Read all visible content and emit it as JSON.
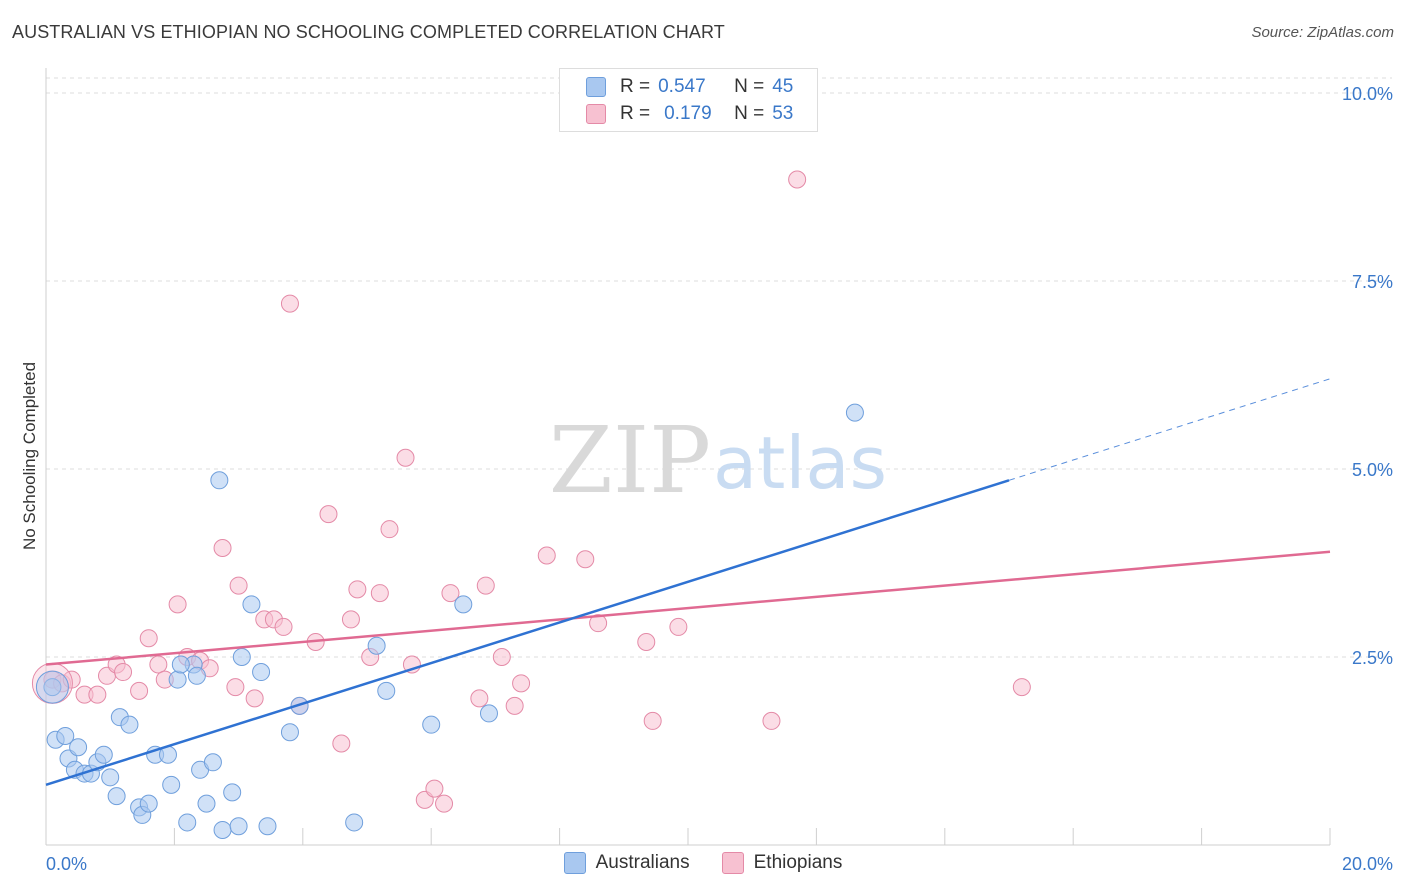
{
  "header": {
    "title": "AUSTRALIAN VS ETHIOPIAN NO SCHOOLING COMPLETED CORRELATION CHART",
    "source": "Source: ZipAtlas.com"
  },
  "watermark": {
    "zip": "ZIP",
    "atlas": "atlas"
  },
  "legend": {
    "rows": [
      {
        "r_label": "R =",
        "r_value": "0.547",
        "n_label": "N =",
        "n_value": "45",
        "color": "#a9c8f0",
        "border": "#6f9fdc"
      },
      {
        "r_label": "R =",
        "r_value": "0.179",
        "n_label": "N =",
        "n_value": "53",
        "color": "#f7c1d1",
        "border": "#e48aa7"
      }
    ]
  },
  "bottom_legend": {
    "australians": "Australians",
    "ethiopians": "Ethiopians"
  },
  "colors": {
    "blue_fill": "#a9c8f0",
    "blue_stroke": "#6f9fdc",
    "blue_line": "#2f72d2",
    "pink_fill": "#f7c1d1",
    "pink_stroke": "#e48aa7",
    "pink_line": "#e06a92",
    "axis_text": "#3a78c9"
  },
  "chart_data": {
    "type": "scatter",
    "title": "AUSTRALIAN VS ETHIOPIAN NO SCHOOLING COMPLETED CORRELATION CHART",
    "xlabel": "",
    "ylabel": "No Schooling Completed",
    "xlim": [
      0,
      20
    ],
    "ylim": [
      0,
      10.2
    ],
    "x_tick_labels": [
      "0.0%",
      "20.0%"
    ],
    "y_ticks": [
      2.5,
      5.0,
      7.5,
      10.0
    ],
    "y_tick_labels": [
      "2.5%",
      "5.0%",
      "7.5%",
      "10.0%"
    ],
    "grid": true,
    "legend_position": "top-center",
    "series": [
      {
        "name": "Australians",
        "R": 0.547,
        "N": 45,
        "trend": {
          "x0": 0,
          "y0": 0.8,
          "x1": 15,
          "y1": 4.85,
          "x_ext": 20,
          "y_ext": 6.2
        },
        "points": [
          [
            0.1,
            2.1
          ],
          [
            0.15,
            1.4
          ],
          [
            0.3,
            1.45
          ],
          [
            0.35,
            1.15
          ],
          [
            0.45,
            1.0
          ],
          [
            0.5,
            1.3
          ],
          [
            0.6,
            0.95
          ],
          [
            0.7,
            0.95
          ],
          [
            0.8,
            1.1
          ],
          [
            0.9,
            1.2
          ],
          [
            1.0,
            0.9
          ],
          [
            1.1,
            0.65
          ],
          [
            1.15,
            1.7
          ],
          [
            1.3,
            1.6
          ],
          [
            1.45,
            0.5
          ],
          [
            1.5,
            0.4
          ],
          [
            1.6,
            0.55
          ],
          [
            1.7,
            1.2
          ],
          [
            1.9,
            1.2
          ],
          [
            1.95,
            0.8
          ],
          [
            2.05,
            2.2
          ],
          [
            2.2,
            0.3
          ],
          [
            2.3,
            2.4
          ],
          [
            2.35,
            2.25
          ],
          [
            2.4,
            1.0
          ],
          [
            2.5,
            0.55
          ],
          [
            2.6,
            1.1
          ],
          [
            2.7,
            4.85
          ],
          [
            2.75,
            0.2
          ],
          [
            2.9,
            0.7
          ],
          [
            3.0,
            0.25
          ],
          [
            3.05,
            2.5
          ],
          [
            3.2,
            3.2
          ],
          [
            3.35,
            2.3
          ],
          [
            3.45,
            0.25
          ],
          [
            3.8,
            1.5
          ],
          [
            3.95,
            1.85
          ],
          [
            4.8,
            0.3
          ],
          [
            5.15,
            2.65
          ],
          [
            5.3,
            2.05
          ],
          [
            6.0,
            1.6
          ],
          [
            6.5,
            3.2
          ],
          [
            6.9,
            1.75
          ],
          [
            12.6,
            5.75
          ],
          [
            2.1,
            2.4
          ]
        ]
      },
      {
        "name": "Ethiopians",
        "R": 0.179,
        "N": 53,
        "trend": {
          "x0": 0,
          "y0": 2.4,
          "x1": 20,
          "y1": 3.9
        },
        "points": [
          [
            0.1,
            2.2
          ],
          [
            0.25,
            2.15
          ],
          [
            0.4,
            2.2
          ],
          [
            0.6,
            2.0
          ],
          [
            0.8,
            2.0
          ],
          [
            0.95,
            2.25
          ],
          [
            1.1,
            2.4
          ],
          [
            1.2,
            2.3
          ],
          [
            1.45,
            2.05
          ],
          [
            1.6,
            2.75
          ],
          [
            1.75,
            2.4
          ],
          [
            1.85,
            2.2
          ],
          [
            2.05,
            3.2
          ],
          [
            2.2,
            2.5
          ],
          [
            2.4,
            2.45
          ],
          [
            2.55,
            2.35
          ],
          [
            2.75,
            3.95
          ],
          [
            2.95,
            2.1
          ],
          [
            3.0,
            3.45
          ],
          [
            3.25,
            1.95
          ],
          [
            3.4,
            3.0
          ],
          [
            3.55,
            3.0
          ],
          [
            3.7,
            2.9
          ],
          [
            3.8,
            7.2
          ],
          [
            3.95,
            1.85
          ],
          [
            4.2,
            2.7
          ],
          [
            4.4,
            4.4
          ],
          [
            4.6,
            1.35
          ],
          [
            4.75,
            3.0
          ],
          [
            4.85,
            3.4
          ],
          [
            5.05,
            2.5
          ],
          [
            5.2,
            3.35
          ],
          [
            5.35,
            4.2
          ],
          [
            5.6,
            5.15
          ],
          [
            5.7,
            2.4
          ],
          [
            5.9,
            0.6
          ],
          [
            6.05,
            0.75
          ],
          [
            6.2,
            0.55
          ],
          [
            6.3,
            3.35
          ],
          [
            6.75,
            1.95
          ],
          [
            6.85,
            3.45
          ],
          [
            7.1,
            2.5
          ],
          [
            7.3,
            1.85
          ],
          [
            7.4,
            2.15
          ],
          [
            7.8,
            3.85
          ],
          [
            8.4,
            3.8
          ],
          [
            8.6,
            2.95
          ],
          [
            9.35,
            2.7
          ],
          [
            9.45,
            1.65
          ],
          [
            9.85,
            2.9
          ],
          [
            11.3,
            1.65
          ],
          [
            11.7,
            8.85
          ],
          [
            15.2,
            2.1
          ]
        ]
      }
    ]
  }
}
